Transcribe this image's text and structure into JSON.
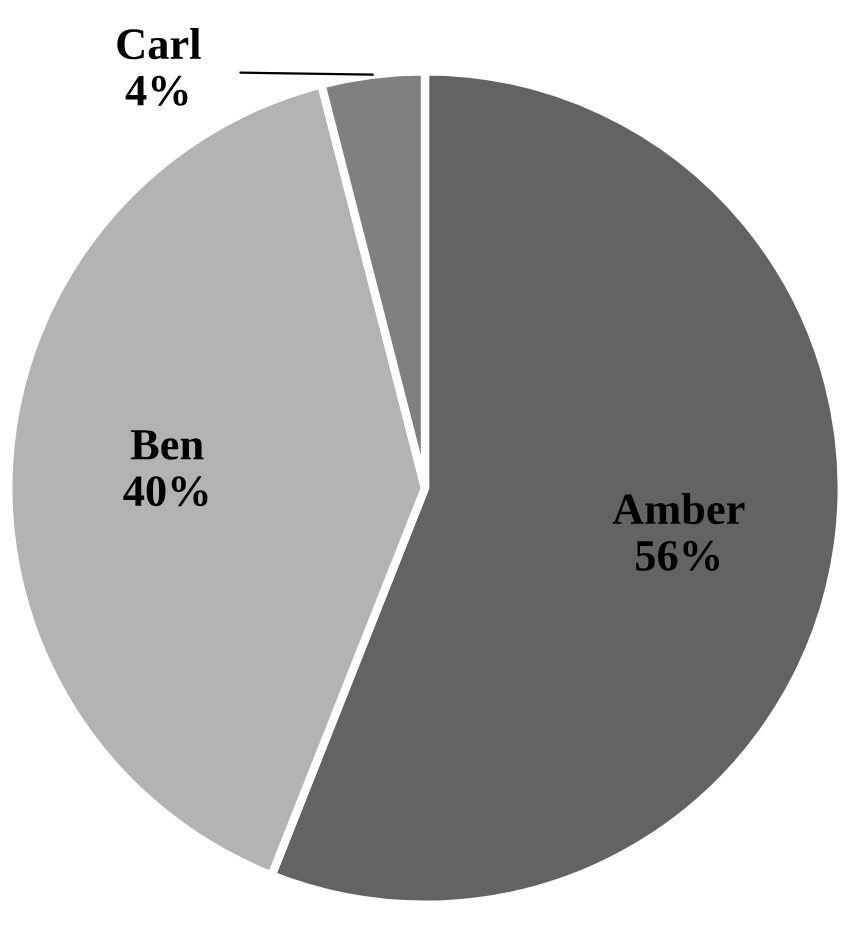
{
  "chart_data": {
    "type": "pie",
    "categories": [
      "Amber",
      "Ben",
      "Carl"
    ],
    "values": [
      56,
      40,
      4
    ],
    "colors": [
      "#636363",
      "#b3b3b3",
      "#808080"
    ],
    "value_labels": [
      "56%",
      "40%",
      "4%"
    ]
  }
}
